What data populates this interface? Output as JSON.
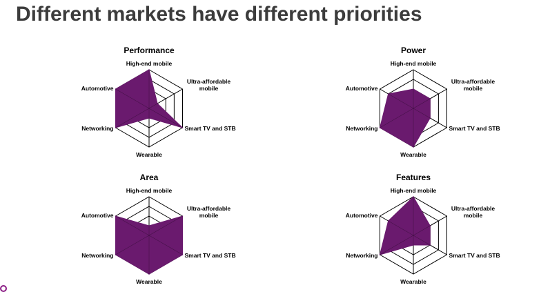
{
  "slide": {
    "title": "Different markets have different priorities"
  },
  "theme": {
    "fill_color": "#6a1a6e",
    "grid_color": "#000000",
    "accent_color": "#8b1d85"
  },
  "chart_data": [
    {
      "type": "radar",
      "title": "Performance",
      "axes": [
        "High-end mobile",
        "Ultra-affordable mobile",
        "Smart TV and STB",
        "Wearable",
        "Networking",
        "Automotive"
      ],
      "levels": 4,
      "range": [
        0,
        4
      ],
      "values": [
        4,
        1,
        4,
        1,
        4,
        4
      ],
      "grid": true,
      "legend": "none"
    },
    {
      "type": "radar",
      "title": "Power",
      "axes": [
        "High-end mobile",
        "Ultra-affordable mobile",
        "Smart TV and STB",
        "Wearable",
        "Networking",
        "Automotive"
      ],
      "levels": 4,
      "range": [
        0,
        4
      ],
      "values": [
        2,
        2,
        2,
        4,
        4,
        3
      ],
      "grid": true,
      "legend": "none"
    },
    {
      "type": "radar",
      "title": "Area",
      "axes": [
        "High-end mobile",
        "Ultra-affordable mobile",
        "Smart TV and STB",
        "Wearable",
        "Networking",
        "Automotive"
      ],
      "levels": 4,
      "range": [
        0,
        4
      ],
      "values": [
        1,
        4,
        4,
        4,
        4,
        4
      ],
      "grid": true,
      "legend": "none"
    },
    {
      "type": "radar",
      "title": "Features",
      "axes": [
        "High-end mobile",
        "Ultra-affordable mobile",
        "Smart TV and STB",
        "Wearable",
        "Networking",
        "Automotive"
      ],
      "levels": 4,
      "range": [
        0,
        4
      ],
      "values": [
        4,
        2,
        2,
        1,
        4,
        3
      ],
      "grid": true,
      "legend": "none"
    }
  ]
}
